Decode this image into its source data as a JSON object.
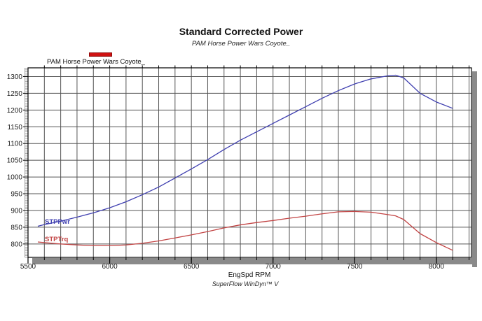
{
  "header": {
    "title": "Standard Corrected Power",
    "subtitle": "PAM Horse Power Wars Coyote_"
  },
  "legend": {
    "label": "PAM Horse Power Wars Coyote_",
    "swatch_color": "#cf1212",
    "swatch_border": "#8f0b0b"
  },
  "curve_labels": {
    "power": "STPPwr",
    "torque": "STPTrq"
  },
  "axes": {
    "x_label": "EngSpd RPM",
    "footer": "SuperFlow WinDyn™ V"
  },
  "colors": {
    "power_line": "#4040b0",
    "torque_line": "#c24444",
    "grid": "#555555",
    "border": "#000000",
    "shadow": "#8a8a8a",
    "tick": "#000000",
    "tick_text": "#1a1a1a",
    "minor_rail": "#999999",
    "plot_bg": "#ffffff"
  },
  "chart_data": {
    "type": "line",
    "title": "Standard Corrected Power",
    "subtitle": "PAM Horse Power Wars Coyote_",
    "xlabel": "EngSpd RPM",
    "ylabel": "",
    "legend_position": "top-left",
    "grid": true,
    "xlim": [
      5500,
      8215
    ],
    "ylim": [
      760,
      1326
    ],
    "x_ticks": [
      5500,
      6000,
      6500,
      7000,
      7500,
      8000
    ],
    "y_ticks": [
      800,
      850,
      900,
      950,
      1000,
      1050,
      1100,
      1150,
      1200,
      1250,
      1300
    ],
    "x_grid_step": 100,
    "y_grid_step": 50,
    "x": [
      5560,
      5600,
      5700,
      5800,
      5900,
      6000,
      6100,
      6200,
      6300,
      6400,
      6500,
      6600,
      6700,
      6800,
      6900,
      7000,
      7100,
      7200,
      7300,
      7400,
      7500,
      7600,
      7700,
      7750,
      7800,
      7900,
      8000,
      8100
    ],
    "series": [
      {
        "name": "STPPwr",
        "color": "#4040b0",
        "values": [
          853,
          858,
          868,
          880,
          893,
          908,
          926,
          947,
          970,
          997,
          1024,
          1052,
          1082,
          1110,
          1135,
          1160,
          1185,
          1210,
          1235,
          1258,
          1278,
          1293,
          1302,
          1304,
          1296,
          1250,
          1224,
          1205
        ]
      },
      {
        "name": "STPTrq",
        "color": "#c24444",
        "values": [
          806,
          804,
          800,
          797,
          795,
          795,
          797,
          802,
          809,
          818,
          827,
          837,
          848,
          857,
          864,
          870,
          877,
          883,
          890,
          896,
          897,
          895,
          888,
          884,
          873,
          831,
          804,
          781
        ]
      }
    ]
  }
}
